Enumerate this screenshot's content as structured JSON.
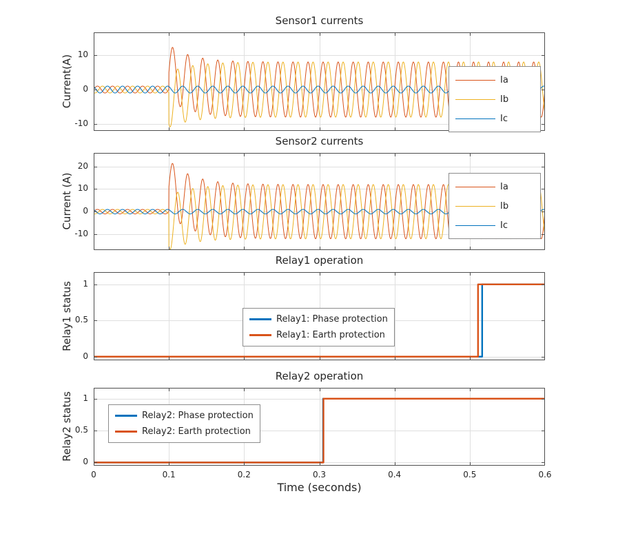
{
  "style": {
    "background": "#ffffff",
    "axis_color": "#4d4d4d",
    "grid_color": "#dfdfdf",
    "text_color": "#262626",
    "legend_border": "#8c8c8c",
    "phase_a_color": "#D95319",
    "phase_b_color": "#EDB120",
    "phase_c_color": "#0072BD",
    "relay_phase_color": "#0072BD",
    "relay_earth_color": "#D95319"
  },
  "xlabel": "Time (seconds)",
  "xticklabels": [
    "0",
    "0.1",
    "0.2",
    "0.3",
    "0.4",
    "0.5",
    "0.6"
  ],
  "chart_data": [
    {
      "type": "line",
      "title": "Sensor1 currents",
      "ylabel": "Current(A)",
      "xlim": [
        0,
        0.6
      ],
      "ylim": [
        -12,
        16.6
      ],
      "xticks": [
        0,
        0.1,
        0.2,
        0.3,
        0.4,
        0.5,
        0.6
      ],
      "yticks": [
        -10,
        0,
        10
      ],
      "grid": true,
      "fault_time": 0.1,
      "legend_position": "right-inside",
      "series": [
        {
          "name": "Ia",
          "color": "#D95319",
          "kind": "three_phase",
          "freq_hz": 50,
          "phase_deg": 0,
          "pre_amp": 1,
          "post_amp": 8,
          "dc_offset": 5,
          "dc_tau": 0.03,
          "line_width": 1
        },
        {
          "name": "Ib",
          "color": "#EDB120",
          "kind": "three_phase",
          "freq_hz": 50,
          "phase_deg": -120,
          "pre_amp": 1,
          "post_amp": 8,
          "dc_offset": -3,
          "dc_tau": 0.03,
          "line_width": 1
        },
        {
          "name": "Ic",
          "color": "#0072BD",
          "kind": "three_phase",
          "freq_hz": 50,
          "phase_deg": 120,
          "pre_amp": 1,
          "post_amp": 1,
          "dc_offset": 0,
          "dc_tau": 0.03,
          "line_width": 1
        }
      ]
    },
    {
      "type": "line",
      "title": "Sensor2 currents",
      "ylabel": "Current (A)",
      "xlim": [
        0,
        0.6
      ],
      "ylim": [
        -17,
        26
      ],
      "xticks": [
        0,
        0.1,
        0.2,
        0.3,
        0.4,
        0.5,
        0.6
      ],
      "yticks": [
        -10,
        0,
        10,
        20
      ],
      "grid": true,
      "fault_time": 0.1,
      "legend_position": "right-inside",
      "series": [
        {
          "name": "Ia",
          "color": "#D95319",
          "kind": "three_phase",
          "freq_hz": 50,
          "phase_deg": 0,
          "pre_amp": 1,
          "post_amp": 12,
          "dc_offset": 11,
          "dc_tau": 0.03,
          "line_width": 1
        },
        {
          "name": "Ib",
          "color": "#EDB120",
          "kind": "three_phase",
          "freq_hz": 50,
          "phase_deg": -120,
          "pre_amp": 1,
          "post_amp": 12,
          "dc_offset": -5,
          "dc_tau": 0.03,
          "line_width": 1
        },
        {
          "name": "Ic",
          "color": "#0072BD",
          "kind": "three_phase",
          "freq_hz": 50,
          "phase_deg": 120,
          "pre_amp": 1,
          "post_amp": 1,
          "dc_offset": 0,
          "dc_tau": 0.03,
          "line_width": 1
        }
      ]
    },
    {
      "type": "line",
      "title": "Relay1 operation",
      "ylabel": "Relay1 status",
      "xlim": [
        0,
        0.6
      ],
      "ylim": [
        -0.05,
        1.17
      ],
      "xticks": [
        0,
        0.1,
        0.2,
        0.3,
        0.4,
        0.5,
        0.6
      ],
      "yticks": [
        0,
        0.5,
        1
      ],
      "grid": true,
      "legend_position": "center-inside",
      "series": [
        {
          "name": "Relay1: Phase protection",
          "color": "#0072BD",
          "kind": "step",
          "step_time": 0.5165,
          "low": 0,
          "high": 1,
          "line_width": 2.4
        },
        {
          "name": "Relay1: Earth protection",
          "color": "#D95319",
          "kind": "step",
          "step_time": 0.511,
          "low": 0,
          "high": 1,
          "line_width": 2.4
        }
      ]
    },
    {
      "type": "line",
      "title": "Relay2 operation",
      "ylabel": "Relay2 status",
      "xlim": [
        0,
        0.6
      ],
      "ylim": [
        -0.05,
        1.17
      ],
      "xticks": [
        0,
        0.1,
        0.2,
        0.3,
        0.4,
        0.5,
        0.6
      ],
      "yticks": [
        0,
        0.5,
        1
      ],
      "grid": true,
      "legend_position": "left-inside",
      "series": [
        {
          "name": "Relay2: Phase protection",
          "color": "#0072BD",
          "kind": "step",
          "step_time": 0.305,
          "low": 0,
          "high": 1,
          "line_width": 2.4
        },
        {
          "name": "Relay2: Earth protection",
          "color": "#D95319",
          "kind": "step",
          "step_time": 0.3055,
          "low": 0,
          "high": 1,
          "line_width": 2.4
        }
      ]
    }
  ]
}
